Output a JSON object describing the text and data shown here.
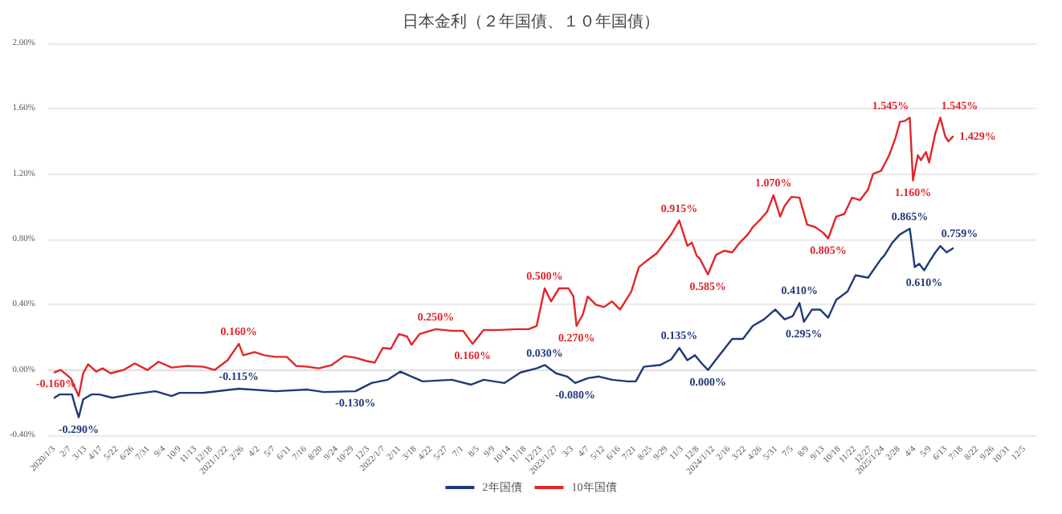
{
  "chart_data": {
    "type": "line",
    "title": "日本金利（２年国債、１０年国債）",
    "legend": "bottom",
    "grid": "y",
    "marker": "none",
    "line_style": "solid",
    "xlim": [
      "2019-12-20",
      "2025-12-31"
    ],
    "ylim": [
      -0.4,
      2.0
    ],
    "yticks": [
      {
        "value": -0.4,
        "label": "-0.40%"
      },
      {
        "value": 0,
        "label": "0.00%"
      },
      {
        "value": 0.4,
        "label": "0.40%"
      },
      {
        "value": 0.8,
        "label": "0.80%"
      },
      {
        "value": 1.2,
        "label": "1.20%"
      },
      {
        "value": 1.6,
        "label": "1.60%"
      },
      {
        "value": 2.0,
        "label": "2.00%"
      }
    ],
    "xticks": [
      {
        "value": "2020-01-03",
        "label": "2020/1/3"
      },
      {
        "value": "2020-02-07",
        "label": "2/7"
      },
      {
        "value": "2020-03-13",
        "label": "3/13"
      },
      {
        "value": "2020-04-17",
        "label": "4/17"
      },
      {
        "value": "2020-05-22",
        "label": "5/22"
      },
      {
        "value": "2020-06-26",
        "label": "6/26"
      },
      {
        "value": "2020-07-31",
        "label": "7/31"
      },
      {
        "value": "2020-09-04",
        "label": "9/4"
      },
      {
        "value": "2020-10-09",
        "label": "10/9"
      },
      {
        "value": "2020-11-13",
        "label": "11/13"
      },
      {
        "value": "2020-12-18",
        "label": "12/18"
      },
      {
        "value": "2021-01-22",
        "label": "2021/1/22"
      },
      {
        "value": "2021-02-26",
        "label": "2/26"
      },
      {
        "value": "2021-04-02",
        "label": "4/2"
      },
      {
        "value": "2021-05-07",
        "label": "5/7"
      },
      {
        "value": "2021-06-11",
        "label": "6/11"
      },
      {
        "value": "2021-07-16",
        "label": "7/16"
      },
      {
        "value": "2021-08-20",
        "label": "8/20"
      },
      {
        "value": "2021-09-24",
        "label": "9/24"
      },
      {
        "value": "2021-10-29",
        "label": "10/29"
      },
      {
        "value": "2021-12-03",
        "label": "12/3"
      },
      {
        "value": "2022-01-07",
        "label": "2022/1/7"
      },
      {
        "value": "2022-02-11",
        "label": "2/11"
      },
      {
        "value": "2022-03-18",
        "label": "3/18"
      },
      {
        "value": "2022-04-22",
        "label": "4/22"
      },
      {
        "value": "2022-05-27",
        "label": "5/27"
      },
      {
        "value": "2022-07-01",
        "label": "7/1"
      },
      {
        "value": "2022-08-05",
        "label": "8/5"
      },
      {
        "value": "2022-09-09",
        "label": "9/9"
      },
      {
        "value": "2022-10-14",
        "label": "10/14"
      },
      {
        "value": "2022-11-18",
        "label": "11/18"
      },
      {
        "value": "2022-12-23",
        "label": "12/23"
      },
      {
        "value": "2023-01-27",
        "label": "2023/1/27"
      },
      {
        "value": "2023-03-03",
        "label": "3/3"
      },
      {
        "value": "2023-04-07",
        "label": "4/7"
      },
      {
        "value": "2023-05-12",
        "label": "5/12"
      },
      {
        "value": "2023-06-16",
        "label": "6/16"
      },
      {
        "value": "2023-07-21",
        "label": "7/21"
      },
      {
        "value": "2023-08-25",
        "label": "8/25"
      },
      {
        "value": "2023-09-29",
        "label": "9/29"
      },
      {
        "value": "2023-11-03",
        "label": "11/3"
      },
      {
        "value": "2023-12-08",
        "label": "12/8"
      },
      {
        "value": "2024-01-12",
        "label": "2024/1/12"
      },
      {
        "value": "2024-02-16",
        "label": "2/16"
      },
      {
        "value": "2024-03-22",
        "label": "3/22"
      },
      {
        "value": "2024-04-26",
        "label": "4/26"
      },
      {
        "value": "2024-05-31",
        "label": "5/31"
      },
      {
        "value": "2024-07-05",
        "label": "7/5"
      },
      {
        "value": "2024-08-09",
        "label": "8/9"
      },
      {
        "value": "2024-09-13",
        "label": "9/13"
      },
      {
        "value": "2024-10-18",
        "label": "10/18"
      },
      {
        "value": "2024-11-22",
        "label": "11/22"
      },
      {
        "value": "2024-12-27",
        "label": "12/27"
      },
      {
        "value": "2025-01-24",
        "label": "2025/1/24"
      },
      {
        "value": "2025-02-28",
        "label": "2/28"
      },
      {
        "value": "2025-04-04",
        "label": "4/4"
      },
      {
        "value": "2025-05-09",
        "label": "5/9"
      },
      {
        "value": "2025-06-13",
        "label": "6/13"
      },
      {
        "value": "2025-07-18",
        "label": "7/18"
      },
      {
        "value": "2025-08-22",
        "label": "8/22"
      },
      {
        "value": "2025-09-26",
        "label": "9/26"
      },
      {
        "value": "2025-10-31",
        "label": "10/31"
      },
      {
        "value": "2025-12-05",
        "label": "12/5"
      }
    ],
    "series": [
      {
        "name": "2年国債",
        "color": "#1f3a7a",
        "x": [
          "2020-01-03",
          "2020-01-14",
          "2020-02-11",
          "2020-02-18",
          "2020-02-26",
          "2020-03-07",
          "2020-03-25",
          "2020-04-12",
          "2020-05-11",
          "2020-06-22",
          "2020-08-15",
          "2020-09-20",
          "2020-10-08",
          "2020-11-30",
          "2021-02-17",
          "2021-05-10",
          "2021-07-20",
          "2021-08-25",
          "2021-11-04",
          "2021-12-10",
          "2022-01-15",
          "2022-02-12",
          "2022-03-09",
          "2022-04-03",
          "2022-06-07",
          "2022-07-20",
          "2022-08-17",
          "2022-10-02",
          "2022-11-07",
          "2022-12-13",
          "2022-12-31",
          "2023-01-25",
          "2023-02-19",
          "2023-03-09",
          "2023-04-06",
          "2023-05-01",
          "2023-05-30",
          "2023-07-04",
          "2023-07-22",
          "2023-08-09",
          "2023-09-14",
          "2023-10-09",
          "2023-10-27",
          "2023-11-14",
          "2023-12-01",
          "2023-12-16",
          "2023-12-30",
          "2024-01-20",
          "2024-02-22",
          "2024-03-17",
          "2024-04-08",
          "2024-05-03",
          "2024-05-28",
          "2024-06-18",
          "2024-07-06",
          "2024-07-21",
          "2024-07-31",
          "2024-08-18",
          "2024-09-05",
          "2024-09-23",
          "2024-10-11",
          "2024-11-05",
          "2024-11-23",
          "2024-12-21",
          "2025-01-19",
          "2025-01-26",
          "2025-02-13",
          "2025-03-02",
          "2025-03-24",
          "2025-04-04",
          "2025-04-14",
          "2025-04-25",
          "2025-05-06",
          "2025-05-20",
          "2025-05-31",
          "2025-06-14",
          "2025-06-28"
        ],
        "values": [
          -0.17,
          -0.15,
          -0.15,
          -0.22,
          -0.29,
          -0.18,
          -0.15,
          -0.15,
          -0.17,
          -0.15,
          -0.13,
          -0.16,
          -0.14,
          -0.14,
          -0.115,
          -0.13,
          -0.12,
          -0.135,
          -0.13,
          -0.08,
          -0.06,
          -0.01,
          -0.04,
          -0.07,
          -0.06,
          -0.09,
          -0.06,
          -0.08,
          -0.015,
          0.01,
          0.03,
          -0.02,
          -0.04,
          -0.08,
          -0.05,
          -0.04,
          -0.06,
          -0.07,
          -0.07,
          0.02,
          0.03,
          0.065,
          0.135,
          0.06,
          0.09,
          0.04,
          0.0,
          0.075,
          0.19,
          0.19,
          0.27,
          0.31,
          0.37,
          0.31,
          0.33,
          0.41,
          0.295,
          0.37,
          0.37,
          0.32,
          0.43,
          0.48,
          0.58,
          0.565,
          0.68,
          0.7,
          0.78,
          0.83,
          0.865,
          0.63,
          0.65,
          0.61,
          0.66,
          0.72,
          0.759,
          0.72,
          0.745
        ],
        "value_labels": [
          null,
          null,
          null,
          null,
          "-0.290%",
          null,
          null,
          null,
          null,
          null,
          null,
          null,
          null,
          null,
          "-0.115%",
          null,
          null,
          null,
          "-0.130%",
          null,
          null,
          null,
          null,
          null,
          null,
          null,
          null,
          null,
          null,
          null,
          "0.030%",
          null,
          null,
          "-0.080%",
          null,
          null,
          null,
          null,
          null,
          null,
          null,
          null,
          "0.135%",
          null,
          null,
          null,
          "0.000%",
          null,
          null,
          null,
          null,
          null,
          null,
          null,
          null,
          "0.410%",
          "0.295%",
          null,
          null,
          null,
          null,
          null,
          null,
          null,
          null,
          null,
          null,
          null,
          "0.865%",
          null,
          null,
          "0.610%",
          null,
          null,
          "0.759%",
          null,
          null
        ]
      },
      {
        "name": "10年国債",
        "color": "#e0262b",
        "x": [
          "2020-01-03",
          "2020-01-17",
          "2020-02-08",
          "2020-02-26",
          "2020-03-07",
          "2020-03-18",
          "2020-04-05",
          "2020-04-19",
          "2020-05-07",
          "2020-06-05",
          "2020-06-30",
          "2020-07-28",
          "2020-08-22",
          "2020-09-20",
          "2020-10-25",
          "2020-11-30",
          "2020-12-25",
          "2021-01-23",
          "2021-02-17",
          "2021-02-27",
          "2021-03-24",
          "2021-04-15",
          "2021-05-10",
          "2021-06-04",
          "2021-06-25",
          "2021-07-20",
          "2021-08-14",
          "2021-09-12",
          "2021-10-10",
          "2021-11-04",
          "2021-11-29",
          "2021-12-17",
          "2022-01-04",
          "2022-01-22",
          "2022-02-09",
          "2022-02-27",
          "2022-03-09",
          "2022-03-27",
          "2022-05-02",
          "2022-06-07",
          "2022-07-02",
          "2022-07-23",
          "2022-08-17",
          "2022-09-22",
          "2022-10-27",
          "2022-11-25",
          "2022-12-13",
          "2022-12-31",
          "2023-01-14",
          "2023-02-01",
          "2023-02-22",
          "2023-03-05",
          "2023-03-12",
          "2023-03-26",
          "2023-04-06",
          "2023-04-24",
          "2023-05-12",
          "2023-05-30",
          "2023-06-17",
          "2023-07-12",
          "2023-07-29",
          "2023-08-16",
          "2023-09-07",
          "2023-09-25",
          "2023-10-09",
          "2023-10-27",
          "2023-11-14",
          "2023-11-24",
          "2023-12-05",
          "2023-12-12",
          "2023-12-30",
          "2024-01-17",
          "2024-02-04",
          "2024-02-22",
          "2024-03-10",
          "2024-03-28",
          "2024-04-08",
          "2024-04-26",
          "2024-05-10",
          "2024-05-24",
          "2024-06-08",
          "2024-06-18",
          "2024-07-03",
          "2024-07-21",
          "2024-08-07",
          "2024-08-25",
          "2024-09-12",
          "2024-09-23",
          "2024-10-11",
          "2024-10-29",
          "2024-11-15",
          "2024-12-03",
          "2024-12-21",
          "2025-01-01",
          "2025-01-19",
          "2025-02-06",
          "2025-02-20",
          "2025-03-02",
          "2025-03-13",
          "2025-03-24",
          "2025-03-31",
          "2025-04-11",
          "2025-04-18",
          "2025-04-29",
          "2025-05-06",
          "2025-05-20",
          "2025-05-31",
          "2025-06-11",
          "2025-06-18",
          "2025-06-28"
        ],
        "values": [
          -0.015,
          0.0,
          -0.05,
          -0.16,
          -0.02,
          0.035,
          -0.01,
          0.01,
          -0.02,
          0.0,
          0.04,
          0.0,
          0.05,
          0.015,
          0.025,
          0.02,
          0.0,
          0.06,
          0.16,
          0.09,
          0.11,
          0.09,
          0.08,
          0.08,
          0.025,
          0.02,
          0.01,
          0.03,
          0.085,
          0.075,
          0.055,
          0.045,
          0.135,
          0.13,
          0.22,
          0.205,
          0.155,
          0.22,
          0.25,
          0.24,
          0.24,
          0.16,
          0.245,
          0.245,
          0.25,
          0.25,
          0.27,
          0.5,
          0.42,
          0.5,
          0.5,
          0.45,
          0.27,
          0.34,
          0.45,
          0.4,
          0.385,
          0.42,
          0.37,
          0.48,
          0.63,
          0.67,
          0.715,
          0.78,
          0.83,
          0.915,
          0.76,
          0.78,
          0.7,
          0.68,
          0.585,
          0.705,
          0.73,
          0.72,
          0.78,
          0.83,
          0.875,
          0.925,
          0.97,
          1.07,
          0.94,
          1.005,
          1.06,
          1.055,
          0.89,
          0.875,
          0.84,
          0.805,
          0.94,
          0.955,
          1.055,
          1.04,
          1.105,
          1.2,
          1.22,
          1.315,
          1.42,
          1.52,
          1.525,
          1.545,
          1.16,
          1.315,
          1.285,
          1.335,
          1.27,
          1.45,
          1.545,
          1.43,
          1.4,
          1.429
        ],
        "value_labels": [
          null,
          null,
          null,
          "-0.160%",
          null,
          null,
          null,
          null,
          null,
          null,
          null,
          null,
          null,
          null,
          null,
          null,
          null,
          null,
          "0.160%",
          null,
          null,
          null,
          null,
          null,
          null,
          null,
          null,
          null,
          null,
          null,
          null,
          null,
          null,
          null,
          null,
          null,
          null,
          null,
          "0.250%",
          null,
          null,
          "0.160%",
          null,
          null,
          null,
          null,
          null,
          "0.500%",
          null,
          null,
          null,
          null,
          "0.270%",
          null,
          null,
          null,
          null,
          null,
          null,
          null,
          null,
          null,
          null,
          null,
          null,
          "0.915%",
          null,
          null,
          null,
          null,
          "0.585%",
          null,
          null,
          null,
          null,
          null,
          null,
          null,
          null,
          "1.070%",
          null,
          null,
          null,
          null,
          null,
          null,
          null,
          "0.805%",
          null,
          null,
          null,
          null,
          null,
          null,
          null,
          null,
          null,
          null,
          null,
          "1.545%",
          "1.160%",
          null,
          null,
          null,
          null,
          null,
          "1.545%",
          null,
          null,
          "1.429%"
        ]
      }
    ]
  }
}
